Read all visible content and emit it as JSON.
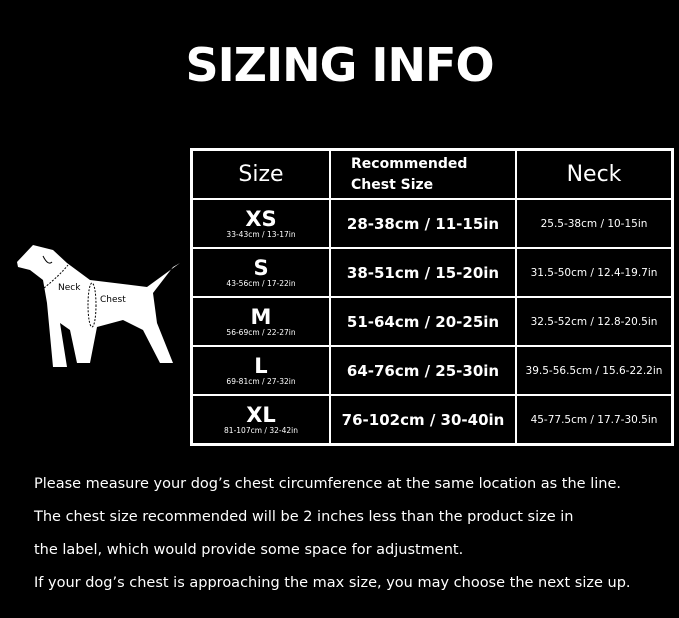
{
  "title": "SIZING INFO",
  "diagram": {
    "neck_label": "Neck",
    "chest_label": "Chest"
  },
  "table": {
    "headers": [
      "Size",
      "Recommended",
      "Chest Size",
      "Neck"
    ],
    "rows": [
      {
        "size": "XS",
        "range": "33-43cm / 13-17in",
        "chest": "28-38cm / 11-15in",
        "neck": "25.5-38cm / 10-15in"
      },
      {
        "size": "S",
        "range": "43-56cm / 17-22in",
        "chest": "38-51cm / 15-20in",
        "neck": "31.5-50cm / 12.4-19.7in"
      },
      {
        "size": "M",
        "range": "56-69cm / 22-27in",
        "chest": "51-64cm / 20-25in",
        "neck": "32.5-52cm / 12.8-20.5in"
      },
      {
        "size": "L",
        "range": "69-81cm / 27-32in",
        "chest": "64-76cm / 25-30in",
        "neck": "39.5-56.5cm / 15.6-22.2in"
      },
      {
        "size": "XL",
        "range": "81-107cm / 32-42in",
        "chest": "76-102cm / 30-40in",
        "neck": "45-77.5cm / 17.7-30.5in"
      }
    ]
  },
  "notes": [
    "Please measure your dog’s chest circumference at the same location as the line.",
    "The chest size recommended will be 2 inches less than the product size in",
    "the label, which would provide some space for adjustment.",
    "If your dog’s chest is approaching the max size, you may choose the next size up."
  ]
}
